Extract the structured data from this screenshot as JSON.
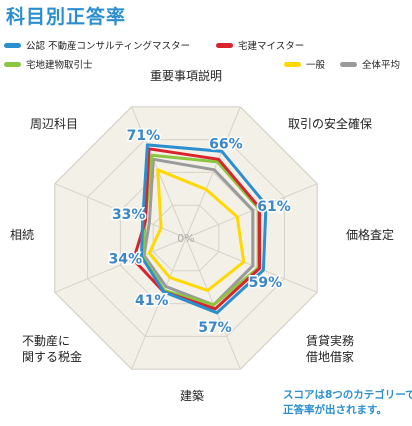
{
  "title": "科目別正答率",
  "note_lines": [
    "スコアは8つのカテゴリーで",
    "正答率が出されます。"
  ],
  "center_label": "0%",
  "colors": {
    "title": "#2b8fcf",
    "grid_fill": "#f3f0e8",
    "grid_line": "#d6d2c8",
    "value_label": "#3a86c8"
  },
  "chart_data": {
    "type": "radar",
    "title": "科目別正答率",
    "axes": [
      {
        "label": "重要事項説明",
        "score_label": "71%"
      },
      {
        "label": "取引の安全確保",
        "score_label": "66%"
      },
      {
        "label": "価格査定",
        "score_label": "61%"
      },
      {
        "label": "賃貸実務\n借地借家",
        "score_label": "59%"
      },
      {
        "label": "建築",
        "score_label": "57%"
      },
      {
        "label": "不動産に\n関する税金",
        "score_label": "41%"
      },
      {
        "label": "相続",
        "score_label": "34%"
      },
      {
        "label": "周辺科目",
        "score_label": "33%"
      }
    ],
    "range": [
      0,
      100
    ],
    "series": [
      {
        "name": "公認 不動産コンサルティングマスター",
        "color": "#2b8fcf",
        "values": [
          71,
          66,
          61,
          59,
          57,
          41,
          34,
          33
        ]
      },
      {
        "name": "宅建マイスター",
        "color": "#d9232d",
        "values": [
          68,
          60,
          56,
          56,
          54,
          41,
          40,
          31
        ]
      },
      {
        "name": "宅地建物取引士",
        "color": "#8cc540",
        "values": [
          63,
          58,
          55,
          55,
          51,
          40,
          33,
          31
        ]
      },
      {
        "name": "一般",
        "color": "#ffd800",
        "values": [
          52,
          37,
          39,
          44,
          40,
          30,
          28,
          19
        ]
      },
      {
        "name": "全体平均",
        "color": "#9a9a9a",
        "values": [
          60,
          52,
          51,
          51,
          51,
          37,
          32,
          28
        ]
      }
    ]
  }
}
